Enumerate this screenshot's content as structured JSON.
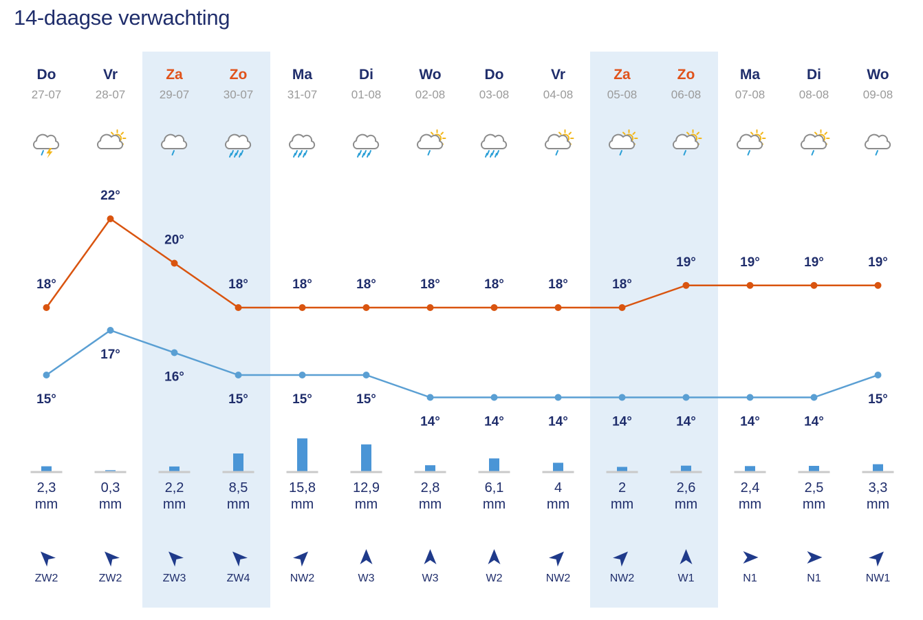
{
  "header": {
    "title": "14-daagse verwachting"
  },
  "colors": {
    "max_line": "#d9540f",
    "min_line": "#5a9fd3",
    "weekend_band": "#e3eef8",
    "weekday_text": "#1f2d6b",
    "weekend_text": "#e0521a",
    "rain_bar": "#4a95d6",
    "arrow": "#1f3a8a"
  },
  "chart_data": {
    "type": "line",
    "title": "14-daagse verwachting",
    "categories": [
      "Do",
      "Vr",
      "Za",
      "Zo",
      "Ma",
      "Di",
      "Wo",
      "Do",
      "Vr",
      "Za",
      "Zo",
      "Ma",
      "Di",
      "Wo"
    ],
    "dates": [
      "27-07",
      "28-07",
      "29-07",
      "30-07",
      "31-07",
      "01-08",
      "02-08",
      "03-08",
      "04-08",
      "05-08",
      "06-08",
      "07-08",
      "08-08",
      "09-08"
    ],
    "weekend": [
      false,
      false,
      true,
      true,
      false,
      false,
      false,
      false,
      false,
      true,
      true,
      false,
      false,
      false
    ],
    "icons": [
      "thunderstorm-icon",
      "partly-cloudy-icon",
      "light-rain-icon",
      "rain-icon",
      "rain-icon",
      "rain-icon",
      "sun-shower-icon",
      "rain-icon",
      "sun-shower-icon",
      "sun-shower-icon",
      "sun-shower-icon",
      "sun-shower-icon",
      "sun-shower-icon",
      "light-rain-icon"
    ],
    "series": [
      {
        "key": "max",
        "values": [
          18,
          22,
          20,
          18,
          18,
          18,
          18,
          18,
          18,
          18,
          19,
          19,
          19,
          19
        ],
        "labels": [
          "18°",
          "22°",
          "20°",
          "18°",
          "18°",
          "18°",
          "18°",
          "18°",
          "18°",
          "18°",
          "19°",
          "19°",
          "19°",
          "19°"
        ]
      },
      {
        "key": "min",
        "values": [
          15,
          17,
          16,
          15,
          15,
          15,
          14,
          14,
          14,
          14,
          14,
          14,
          14,
          15
        ],
        "labels": [
          "15°",
          "17°",
          "16°",
          "15°",
          "15°",
          "15°",
          "14°",
          "14°",
          "14°",
          "14°",
          "14°",
          "14°",
          "14°",
          "15°"
        ]
      }
    ],
    "precipitation": {
      "values": [
        2.3,
        0.3,
        2.2,
        8.5,
        15.8,
        12.9,
        2.8,
        6.1,
        4,
        2,
        2.6,
        2.4,
        2.5,
        3.3
      ],
      "labels": [
        "2,3",
        "0,3",
        "2,2",
        "8,5",
        "15,8",
        "12,9",
        "2,8",
        "6,1",
        "4",
        "2",
        "2,6",
        "2,4",
        "2,5",
        "3,3"
      ],
      "unit": "mm"
    },
    "wind": {
      "labels": [
        "ZW2",
        "ZW2",
        "ZW3",
        "ZW4",
        "NW2",
        "W3",
        "W3",
        "W2",
        "NW2",
        "NW2",
        "W1",
        "N1",
        "N1",
        "NW1"
      ],
      "from_deg": [
        225,
        225,
        225,
        225,
        315,
        270,
        270,
        270,
        315,
        315,
        270,
        0,
        0,
        315
      ]
    }
  }
}
